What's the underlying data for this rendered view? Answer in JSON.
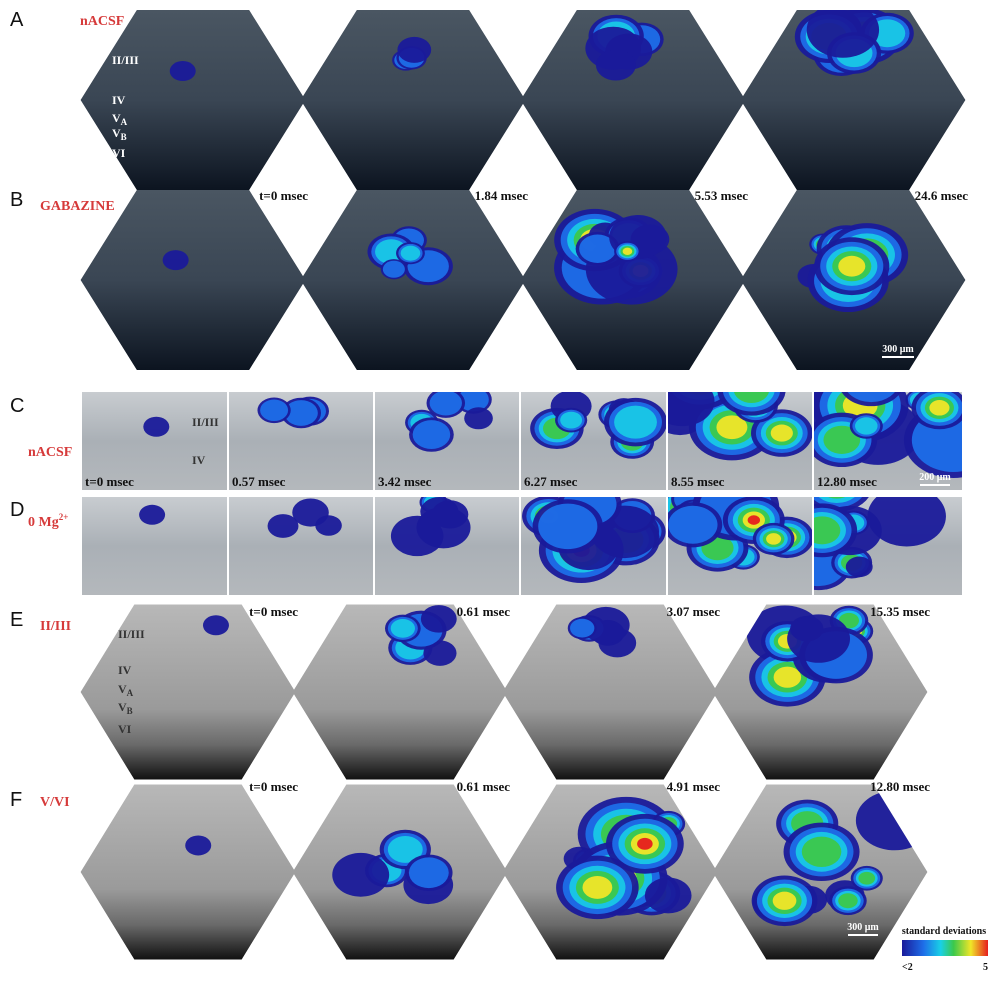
{
  "panel_A": {
    "letter": "A",
    "condition": "nACSF",
    "layers": [
      {
        "text": "II/III"
      },
      {
        "text": "IV"
      },
      {
        "text": "V",
        "sub": "A"
      },
      {
        "text": "V",
        "sub": "B"
      },
      {
        "text": "VI"
      }
    ]
  },
  "panel_B": {
    "letter": "B",
    "condition": "GABAZINE",
    "scale_bar": "300 μm"
  },
  "ab_times": [
    "t=0 msec",
    "1.84 msec",
    "5.53 msec",
    "24.6 msec"
  ],
  "panel_C": {
    "letter": "C",
    "condition": "nACSF",
    "layers": [
      {
        "text": "II/III"
      },
      {
        "text": "IV"
      }
    ],
    "times": [
      "t=0 msec",
      "0.57 msec",
      "3.42 msec",
      "6.27 msec",
      "8.55 msec",
      "12.80 msec"
    ],
    "scale_bar": "200 μm"
  },
  "panel_D": {
    "letter": "D",
    "condition": "0 Mg",
    "condition_sup": "2+"
  },
  "panel_E": {
    "letter": "E",
    "condition": "II/III",
    "layers": [
      {
        "text": "II/III"
      },
      {
        "text": "IV"
      },
      {
        "text": "V",
        "sub": "A"
      },
      {
        "text": "V",
        "sub": "B"
      },
      {
        "text": "VI"
      }
    ],
    "times": [
      "t=0 msec",
      "0.61 msec",
      "3.07 msec",
      "15.35 msec"
    ]
  },
  "panel_F": {
    "letter": "F",
    "condition": "V/VI",
    "times": [
      "t=0 msec",
      "0.61 msec",
      "4.91 msec",
      "12.80 msec"
    ],
    "scale_bar": "300 μm"
  },
  "colorbar": {
    "title": "standard deviations",
    "low": "<2",
    "high": "5"
  }
}
